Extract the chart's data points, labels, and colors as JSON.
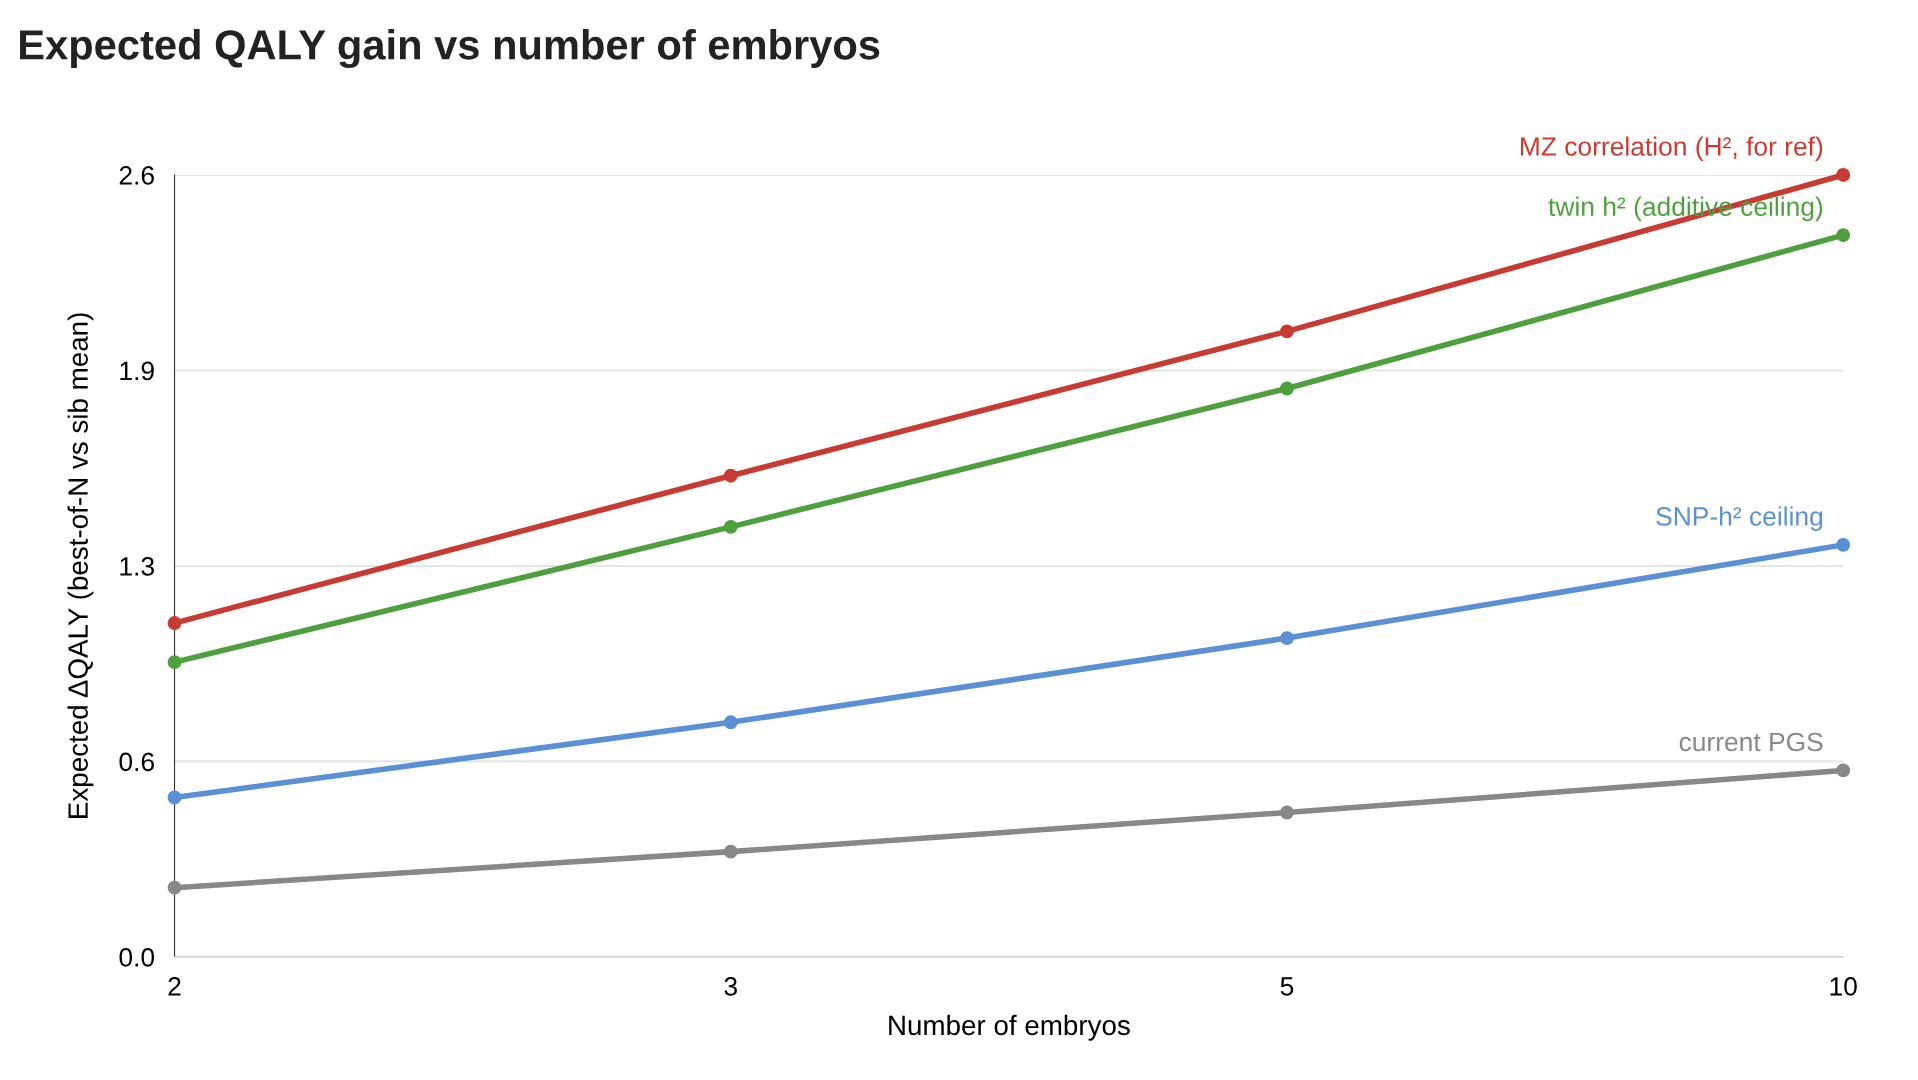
{
  "chart_data": {
    "type": "line",
    "title": "Expected QALY gain vs number of embryos",
    "xlabel": "Number of embryos",
    "ylabel": "Expected ΔQALY (best-of-N vs sib mean)",
    "categories": [
      "2",
      "3",
      "5",
      "10"
    ],
    "series": [
      {
        "name": "MZ correlation (H², for ref)",
        "color": "#c83a32",
        "values": [
          1.11,
          1.6,
          2.08,
          2.6
        ]
      },
      {
        "name": "twin h² (additive ceiling)",
        "color": "#4e9f3d",
        "values": [
          0.98,
          1.43,
          1.89,
          2.4
        ]
      },
      {
        "name": "SNP-h² ceiling",
        "color": "#5b8fd6",
        "values": [
          0.53,
          0.78,
          1.06,
          1.37
        ]
      },
      {
        "name": "current PGS",
        "color": "#888888",
        "values": [
          0.23,
          0.35,
          0.48,
          0.62
        ]
      }
    ],
    "ylim": [
      0,
      2.6
    ],
    "yticks": [
      {
        "value": 0,
        "label": "0.0"
      },
      {
        "value": 0.65,
        "label": "0.6"
      },
      {
        "value": 1.3,
        "label": "1.3"
      },
      {
        "value": 1.95,
        "label": "1.9"
      },
      {
        "value": 2.6,
        "label": "2.6"
      }
    ],
    "grid": "y",
    "marker": "circle",
    "line_style": "solid",
    "legend": false
  }
}
